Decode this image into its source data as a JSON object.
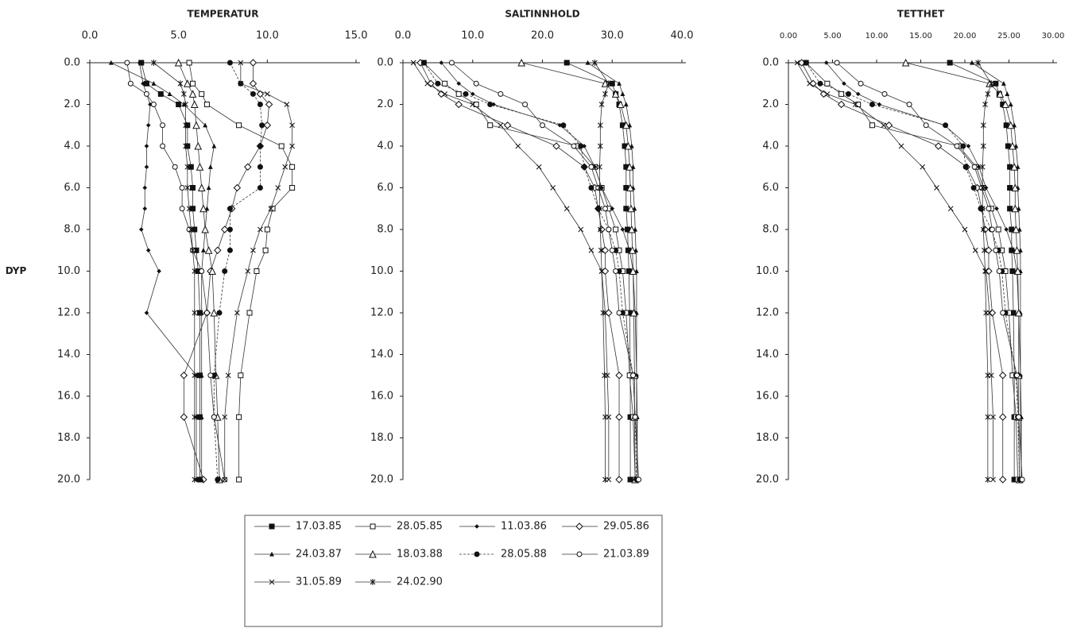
{
  "chart_data": [
    {
      "type": "line",
      "title": "TEMPERATUR",
      "x_label": "DYP",
      "x": [
        0,
        1,
        1.5,
        2,
        3,
        4,
        5,
        6,
        7,
        8,
        9,
        10,
        12,
        15,
        17,
        20
      ],
      "xlim": [
        0,
        20
      ],
      "xticks": [
        {
          "value": 0,
          "label": "0.0"
        },
        {
          "value": 2,
          "label": "2.0"
        },
        {
          "value": 4,
          "label": "4.0"
        },
        {
          "value": 6,
          "label": "6.0"
        },
        {
          "value": 8,
          "label": "8.0"
        },
        {
          "value": 10,
          "label": "10.0"
        },
        {
          "value": 12,
          "label": "12.0"
        },
        {
          "value": 14,
          "label": "14.0"
        },
        {
          "value": 16,
          "label": "16.0"
        },
        {
          "value": 18,
          "label": "18.0"
        },
        {
          "value": 20,
          "label": "20.0"
        }
      ],
      "ylim": [
        0,
        15
      ],
      "yticks": [
        {
          "value": 0,
          "label": "0.0"
        },
        {
          "value": 5,
          "label": "5.0"
        },
        {
          "value": 10,
          "label": "10.0"
        },
        {
          "value": 15,
          "label": "15.0"
        }
      ],
      "series": [
        {
          "name": "17.03.85",
          "marker": "square",
          "filled": true,
          "values": [
            2.9,
            3.2,
            4.0,
            5.0,
            5.5,
            5.5,
            5.7,
            5.8,
            5.8,
            5.9,
            6.0,
            6.1,
            6.2,
            6.2,
            6.2,
            6.2
          ]
        },
        {
          "name": "28.05.85",
          "marker": "square",
          "filled": false,
          "values": [
            5.6,
            5.8,
            6.3,
            6.6,
            8.4,
            10.8,
            11.4,
            11.4,
            10.3,
            10.0,
            9.9,
            9.4,
            9.0,
            8.5,
            8.4,
            8.4
          ]
        },
        {
          "name": "11.03.86",
          "marker": "diamond",
          "filled": true,
          "values": [
            2.8,
            3.0,
            3.2,
            3.4,
            3.3,
            3.2,
            3.2,
            3.1,
            3.1,
            2.9,
            3.3,
            3.9,
            3.2,
            6.0,
            6.0,
            6.0
          ]
        },
        {
          "name": "29.05.86",
          "marker": "diamond",
          "filled": false,
          "values": [
            9.2,
            9.2,
            9.6,
            10.1,
            10.0,
            9.6,
            8.9,
            8.3,
            8.0,
            7.6,
            7.2,
            6.8,
            6.6,
            5.3,
            5.3,
            6.4
          ]
        },
        {
          "name": "24.03.87",
          "marker": "triangle",
          "filled": true,
          "values": [
            1.2,
            3.6,
            4.5,
            5.3,
            6.5,
            7.0,
            6.8,
            6.7,
            6.6,
            6.5,
            6.4,
            6.3,
            6.3,
            6.3,
            6.3,
            6.3
          ]
        },
        {
          "name": "18.03.88",
          "marker": "triangle",
          "filled": false,
          "values": [
            5.0,
            5.5,
            5.8,
            5.9,
            6.0,
            6.1,
            6.2,
            6.3,
            6.4,
            6.5,
            6.7,
            6.9,
            7.0,
            7.1,
            7.2,
            7.3
          ]
        },
        {
          "name": "28.05.88",
          "marker": "circle",
          "filled": true,
          "dashed": true,
          "values": [
            7.9,
            8.5,
            9.2,
            9.6,
            9.7,
            9.6,
            9.6,
            9.6,
            7.9,
            7.9,
            7.9,
            7.6,
            7.3,
            7.0,
            7.0,
            7.2
          ]
        },
        {
          "name": "21.03.89",
          "marker": "circle",
          "filled": false,
          "values": [
            2.1,
            2.3,
            3.2,
            3.6,
            4.1,
            4.1,
            4.8,
            5.2,
            5.2,
            5.6,
            5.8,
            6.3,
            6.6,
            6.8,
            7.0,
            7.6
          ]
        },
        {
          "name": "31.05.89",
          "marker": "x",
          "filled": false,
          "values": [
            8.5,
            8.5,
            10.0,
            11.1,
            11.4,
            11.4,
            11.0,
            10.6,
            10.2,
            9.6,
            9.2,
            8.9,
            8.3,
            7.8,
            7.6,
            7.6
          ]
        },
        {
          "name": "24.02.90",
          "marker": "asterisk",
          "filled": false,
          "values": [
            3.6,
            5.1,
            5.3,
            5.4,
            5.4,
            5.4,
            5.5,
            5.5,
            5.6,
            5.7,
            5.8,
            5.9,
            5.9,
            5.9,
            5.9,
            5.9
          ]
        }
      ]
    },
    {
      "type": "line",
      "title": "SALTINNHOLD",
      "x": [
        0,
        1,
        1.5,
        2,
        3,
        4,
        5,
        6,
        7,
        8,
        9,
        10,
        12,
        15,
        17,
        20
      ],
      "xlim": [
        0,
        20
      ],
      "xticks": [
        {
          "value": 0,
          "label": "0.0"
        },
        {
          "value": 2,
          "label": "2.0"
        },
        {
          "value": 4,
          "label": "4.0"
        },
        {
          "value": 6,
          "label": "6.0"
        },
        {
          "value": 8,
          "label": "8.0"
        },
        {
          "value": 10,
          "label": "10.0"
        },
        {
          "value": 12,
          "label": "12.0"
        },
        {
          "value": 14,
          "label": "14.0"
        },
        {
          "value": 16,
          "label": "16.0"
        },
        {
          "value": 18,
          "label": "18.0"
        },
        {
          "value": 20,
          "label": "20.0"
        }
      ],
      "ylim": [
        0,
        40
      ],
      "yticks": [
        {
          "value": 0,
          "label": "0.0"
        },
        {
          "value": 10,
          "label": "10.0"
        },
        {
          "value": 20,
          "label": "20.0"
        },
        {
          "value": 30,
          "label": "30.0"
        },
        {
          "value": 40,
          "label": "40.0"
        }
      ],
      "series": [
        {
          "marker": "square",
          "filled": true,
          "values": [
            23.5,
            30.0,
            30.5,
            31.0,
            31.5,
            31.8,
            32.0,
            32.0,
            32.0,
            32.2,
            32.3,
            32.4,
            32.5,
            32.6,
            32.6,
            32.6
          ]
        },
        {
          "marker": "square",
          "filled": false,
          "values": [
            3.0,
            6.0,
            8.0,
            10.5,
            12.5,
            25.0,
            27.5,
            28.5,
            29.5,
            30.5,
            31.0,
            31.5,
            32.0,
            32.5,
            33.0,
            33.3
          ]
        },
        {
          "marker": "diamond",
          "filled": true,
          "values": [
            5.5,
            8.0,
            10.0,
            13.0,
            22.5,
            26.0,
            27.5,
            28.5,
            30.0,
            31.5,
            32.5,
            33.0,
            33.3,
            33.5,
            33.5,
            33.6
          ]
        },
        {
          "marker": "diamond",
          "filled": false,
          "values": [
            2.5,
            4.0,
            5.5,
            8.0,
            15.0,
            22.0,
            26.0,
            27.5,
            28.0,
            28.5,
            29.0,
            29.0,
            29.5,
            31.0,
            31.0,
            31.0
          ]
        },
        {
          "marker": "triangle",
          "filled": true,
          "values": [
            26.5,
            31.0,
            31.5,
            32.0,
            32.5,
            32.8,
            33.0,
            33.0,
            33.2,
            33.3,
            33.4,
            33.5,
            33.5,
            33.5,
            33.6,
            33.6
          ]
        },
        {
          "marker": "triangle",
          "filled": false,
          "values": [
            17.0,
            29.0,
            30.5,
            31.2,
            32.0,
            32.3,
            32.5,
            32.6,
            32.7,
            32.8,
            32.9,
            33.0,
            33.1,
            33.2,
            33.2,
            33.3
          ]
        },
        {
          "marker": "circle",
          "filled": true,
          "dashed": true,
          "values": [
            3.0,
            5.0,
            9.0,
            12.5,
            23.0,
            25.5,
            26.0,
            27.0,
            28.0,
            29.5,
            30.5,
            31.0,
            31.5,
            33.0,
            33.3,
            33.5
          ]
        },
        {
          "marker": "circle",
          "filled": false,
          "values": [
            7.0,
            10.5,
            14.0,
            17.5,
            20.0,
            24.5,
            27.0,
            28.0,
            29.0,
            29.5,
            30.0,
            30.5,
            31.0,
            33.0,
            33.3,
            33.8
          ]
        },
        {
          "marker": "x",
          "filled": false,
          "values": [
            1.5,
            3.5,
            6.0,
            10.0,
            14.0,
            16.5,
            19.5,
            21.5,
            23.5,
            25.5,
            27.0,
            28.5,
            29.0,
            29.3,
            29.5,
            29.5
          ]
        },
        {
          "marker": "asterisk",
          "filled": false,
          "values": [
            27.5,
            29.5,
            29.0,
            28.5,
            28.3,
            28.3,
            28.2,
            28.2,
            28.2,
            28.3,
            28.4,
            28.5,
            28.7,
            28.9,
            29.0,
            29.0
          ]
        }
      ]
    },
    {
      "type": "line",
      "title": "TETTHET",
      "x": [
        0,
        1,
        1.5,
        2,
        3,
        4,
        5,
        6,
        7,
        8,
        9,
        10,
        12,
        15,
        17,
        20
      ],
      "xlim": [
        0,
        20
      ],
      "xticks": [
        {
          "value": 0,
          "label": "0.0"
        },
        {
          "value": 2,
          "label": "2.0"
        },
        {
          "value": 4,
          "label": "4.0"
        },
        {
          "value": 6,
          "label": "6.0"
        },
        {
          "value": 8,
          "label": "8.0"
        },
        {
          "value": 10,
          "label": "10.0"
        },
        {
          "value": 12,
          "label": "12.0"
        },
        {
          "value": 14,
          "label": "14.0"
        },
        {
          "value": 16,
          "label": "16.0"
        },
        {
          "value": 18,
          "label": "18.0"
        },
        {
          "value": 20,
          "label": "20.0"
        }
      ],
      "ylim": [
        0,
        30
      ],
      "yticks": [
        {
          "value": 0,
          "label": "0.00"
        },
        {
          "value": 5,
          "label": "5.00"
        },
        {
          "value": 10,
          "label": "10.00"
        },
        {
          "value": 15,
          "label": "15.00"
        },
        {
          "value": 20,
          "label": "20.00"
        },
        {
          "value": 25,
          "label": "25.00"
        },
        {
          "value": 30,
          "label": "30.00"
        }
      ],
      "series": [
        {
          "marker": "square",
          "filled": true,
          "values": [
            18.3,
            23.5,
            23.9,
            24.3,
            24.7,
            24.9,
            25.1,
            25.1,
            25.1,
            25.3,
            25.3,
            25.4,
            25.5,
            25.6,
            25.6,
            25.6
          ]
        },
        {
          "marker": "square",
          "filled": false,
          "values": [
            2.0,
            4.4,
            6.0,
            7.9,
            9.5,
            19.3,
            21.3,
            22.1,
            23.0,
            23.8,
            24.2,
            24.6,
            25.0,
            25.4,
            25.8,
            26.0
          ]
        },
        {
          "marker": "diamond",
          "filled": true,
          "values": [
            4.3,
            6.3,
            7.9,
            10.3,
            17.7,
            20.4,
            21.6,
            22.4,
            23.6,
            24.7,
            25.5,
            25.9,
            26.1,
            26.3,
            26.3,
            26.4
          ]
        },
        {
          "marker": "diamond",
          "filled": false,
          "values": [
            1.5,
            2.8,
            4.0,
            6.0,
            11.4,
            17.0,
            20.2,
            21.4,
            21.9,
            22.3,
            22.7,
            22.7,
            23.1,
            24.3,
            24.3,
            24.3
          ]
        },
        {
          "marker": "triangle",
          "filled": true,
          "values": [
            20.8,
            24.4,
            24.8,
            25.2,
            25.6,
            25.8,
            26.0,
            26.0,
            26.1,
            26.2,
            26.3,
            26.3,
            26.3,
            26.3,
            26.4,
            26.4
          ]
        },
        {
          "marker": "triangle",
          "filled": false,
          "values": [
            13.3,
            22.8,
            24.0,
            24.6,
            25.2,
            25.4,
            25.6,
            25.7,
            25.7,
            25.8,
            25.9,
            26.0,
            26.1,
            26.1,
            26.1,
            26.2
          ]
        },
        {
          "marker": "circle",
          "filled": true,
          "dashed": true,
          "values": [
            2.0,
            3.6,
            6.8,
            9.5,
            17.8,
            19.8,
            20.1,
            21.0,
            21.8,
            23.0,
            23.8,
            24.2,
            24.6,
            25.8,
            26.0,
            26.2
          ]
        },
        {
          "marker": "circle",
          "filled": false,
          "values": [
            5.5,
            8.2,
            10.9,
            13.7,
            15.6,
            19.1,
            21.1,
            21.9,
            22.7,
            23.1,
            23.5,
            23.9,
            24.3,
            25.9,
            26.1,
            26.5
          ]
        },
        {
          "marker": "x",
          "filled": false,
          "values": [
            1.0,
            2.4,
            4.4,
            7.6,
            10.8,
            12.8,
            15.2,
            16.8,
            18.4,
            20.0,
            21.2,
            22.4,
            22.8,
            23.0,
            23.2,
            23.2
          ]
        },
        {
          "marker": "asterisk",
          "filled": false,
          "values": [
            21.5,
            23.0,
            22.6,
            22.3,
            22.1,
            22.1,
            22.0,
            22.0,
            22.0,
            22.1,
            22.2,
            22.3,
            22.4,
            22.6,
            22.6,
            22.6
          ]
        }
      ]
    }
  ]
}
